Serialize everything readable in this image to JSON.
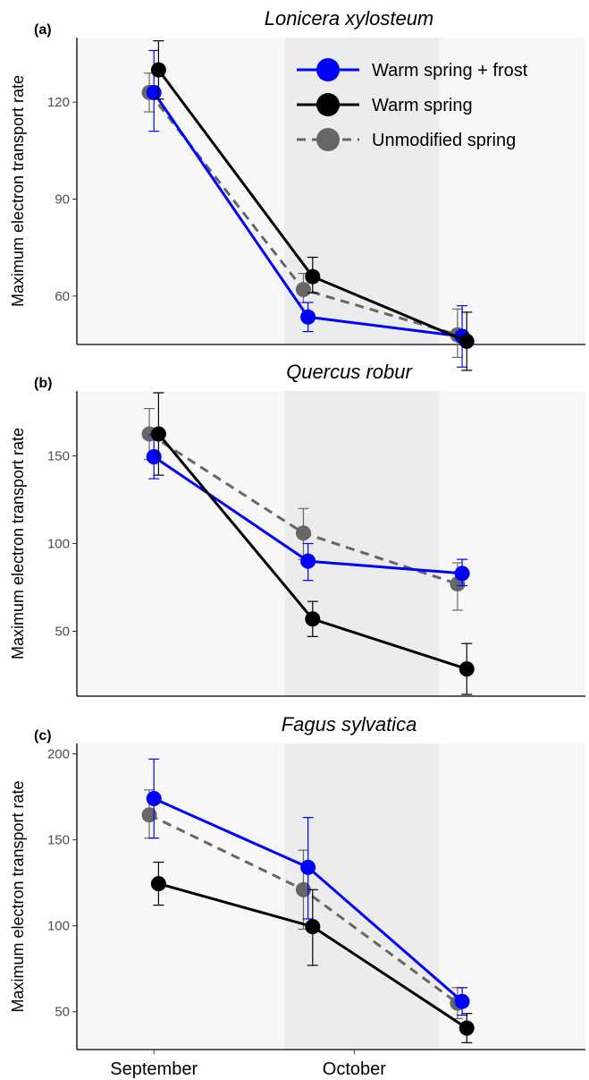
{
  "chart_data": [
    {
      "type": "line",
      "panel_label": "(a)",
      "title": "Lonicera xylosteum",
      "ylabel": "Maximum electron transport rate",
      "ylim": [
        45,
        140
      ],
      "yticks": [
        60,
        90,
        120
      ],
      "x_tick_labels": [
        "September",
        "October"
      ],
      "x": [
        1,
        2,
        3
      ],
      "shaded_band": [
        1.85,
        2.85
      ],
      "legend": {
        "position": "top-right"
      },
      "series": [
        {
          "name": "Warm spring + frost",
          "color": "#0000ff",
          "dashed": false,
          "values": [
            123,
            53.5,
            47.5
          ],
          "err_low": [
            111,
            49,
            38
          ],
          "err_high": [
            136,
            58,
            57
          ]
        },
        {
          "name": "Warm spring",
          "color": "#000000",
          "dashed": false,
          "values": [
            130,
            66,
            46
          ],
          "err_low": [
            121,
            61,
            37
          ],
          "err_high": [
            139,
            72,
            55
          ]
        },
        {
          "name": "Unmodified spring",
          "color": "#666666",
          "dashed": true,
          "values": [
            123,
            62,
            48
          ],
          "err_low": [
            117,
            58,
            41
          ],
          "err_high": [
            129,
            67,
            56
          ]
        }
      ],
      "x_offsets": [
        0.0,
        0.03,
        -0.03
      ]
    },
    {
      "type": "line",
      "panel_label": "(b)",
      "title": "Quercus robur",
      "ylabel": "Maximum electron transport rate",
      "ylim": [
        13,
        187
      ],
      "yticks": [
        50,
        100,
        150
      ],
      "x_tick_labels": [
        "September",
        "October"
      ],
      "x": [
        1,
        2,
        3
      ],
      "shaded_band": [
        1.85,
        2.85
      ],
      "series": [
        {
          "name": "Warm spring + frost",
          "color": "#0000ff",
          "dashed": false,
          "values": [
            149.5,
            90,
            83
          ],
          "err_low": [
            137,
            79,
            76
          ],
          "err_high": [
            162,
            100,
            91
          ]
        },
        {
          "name": "Warm spring",
          "color": "#000000",
          "dashed": false,
          "values": [
            162.5,
            57,
            28.5
          ],
          "err_low": [
            139,
            47,
            14
          ],
          "err_high": [
            186,
            67,
            43
          ]
        },
        {
          "name": "Unmodified spring",
          "color": "#666666",
          "dashed": true,
          "values": [
            162.5,
            106,
            77
          ],
          "err_low": [
            148,
            91,
            62
          ],
          "err_high": [
            177,
            120,
            89
          ]
        }
      ],
      "x_offsets": [
        0.0,
        0.03,
        -0.03
      ]
    },
    {
      "type": "line",
      "panel_label": "(c)",
      "title": "Fagus sylvatica",
      "ylabel": "Maximum electron transport rate",
      "ylim": [
        28,
        206
      ],
      "yticks": [
        50,
        100,
        150,
        200
      ],
      "x_tick_labels": [
        "September",
        "October"
      ],
      "x": [
        1,
        2,
        3
      ],
      "shaded_band": [
        1.85,
        2.85
      ],
      "series": [
        {
          "name": "Warm spring + frost",
          "color": "#0000ff",
          "dashed": false,
          "values": [
            174,
            134,
            56
          ],
          "err_low": [
            151,
            104,
            48
          ],
          "err_high": [
            197,
            163,
            64
          ]
        },
        {
          "name": "Warm spring",
          "color": "#000000",
          "dashed": false,
          "values": [
            124.5,
            99.5,
            40.5
          ],
          "err_low": [
            112,
            77,
            32
          ],
          "err_high": [
            137,
            121,
            49
          ]
        },
        {
          "name": "Unmodified spring",
          "color": "#666666",
          "dashed": true,
          "values": [
            164.5,
            121,
            55
          ],
          "err_low": [
            151,
            98,
            46
          ],
          "err_high": [
            179,
            144,
            64
          ]
        }
      ],
      "x_offsets": [
        0.0,
        0.03,
        -0.03
      ]
    }
  ]
}
